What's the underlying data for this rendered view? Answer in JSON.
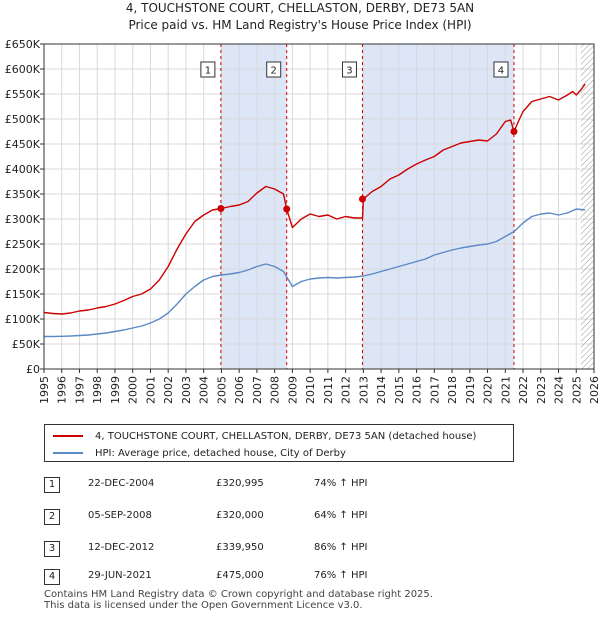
{
  "header": {
    "title_line1": "4, TOUCHSTONE COURT, CHELLASTON, DERBY, DE73 5AN",
    "title_line2": "Price paid vs. HM Land Registry's House Price Index (HPI)"
  },
  "legend": {
    "property_label": "4, TOUCHSTONE COURT, CHELLASTON, DERBY, DE73 5AN (detached house)",
    "hpi_label": "HPI: Average price, detached house, City of Derby"
  },
  "transactions": [
    {
      "num": "1",
      "date": "22-DEC-2004",
      "price": "£320,995",
      "hpi": "74% ↑ HPI"
    },
    {
      "num": "2",
      "date": "05-SEP-2008",
      "price": "£320,000",
      "hpi": "64% ↑ HPI"
    },
    {
      "num": "3",
      "date": "12-DEC-2012",
      "price": "£339,950",
      "hpi": "86% ↑ HPI"
    },
    {
      "num": "4",
      "date": "29-JUN-2021",
      "price": "£475,000",
      "hpi": "76% ↑ HPI"
    }
  ],
  "footer": {
    "line1": "Contains HM Land Registry data © Crown copyright and database right 2025.",
    "line2": "This data is licensed under the Open Government Licence v3.0."
  },
  "colors": {
    "property": "#cc0000",
    "hpi": "#5b8ac6",
    "band": "#dde6f7",
    "grid": "#d9d9d9",
    "hatch": "#999999"
  },
  "chart_data": {
    "type": "line",
    "title": "4, TOUCHSTONE COURT, CHELLASTON, DERBY, DE73 5AN",
    "subtitle": "Price paid vs. HM Land Registry's House Price Index (HPI)",
    "xlabel": "",
    "ylabel": "",
    "xlim": [
      1995,
      2026
    ],
    "ylim": [
      0,
      650000
    ],
    "grid": true,
    "y_ticks": [
      {
        "value": 0,
        "label": "£0"
      },
      {
        "value": 50000,
        "label": "£50K"
      },
      {
        "value": 100000,
        "label": "£100K"
      },
      {
        "value": 150000,
        "label": "£150K"
      },
      {
        "value": 200000,
        "label": "£200K"
      },
      {
        "value": 250000,
        "label": "£250K"
      },
      {
        "value": 300000,
        "label": "£300K"
      },
      {
        "value": 350000,
        "label": "£350K"
      },
      {
        "value": 400000,
        "label": "£400K"
      },
      {
        "value": 450000,
        "label": "£450K"
      },
      {
        "value": 500000,
        "label": "£500K"
      },
      {
        "value": 550000,
        "label": "£550K"
      },
      {
        "value": 600000,
        "label": "£600K"
      },
      {
        "value": 650000,
        "label": "£650K"
      }
    ],
    "x_ticks": [
      "1995",
      "1996",
      "1997",
      "1998",
      "1999",
      "2000",
      "2001",
      "2002",
      "2003",
      "2004",
      "2005",
      "2006",
      "2007",
      "2008",
      "2009",
      "2010",
      "2011",
      "2012",
      "2013",
      "2014",
      "2015",
      "2016",
      "2017",
      "2018",
      "2019",
      "2020",
      "2021",
      "2022",
      "2023",
      "2024",
      "2025",
      "2026"
    ],
    "shaded_ranges": [
      [
        2004.97,
        2008.68
      ],
      [
        2012.95,
        2021.49
      ]
    ],
    "hatched_from": 2025.25,
    "sale_markers": [
      {
        "label": "1",
        "x": 2004.97,
        "y": 320995
      },
      {
        "label": "2",
        "x": 2008.68,
        "y": 320000
      },
      {
        "label": "3",
        "x": 2012.95,
        "y": 339950
      },
      {
        "label": "4",
        "x": 2021.49,
        "y": 475000
      }
    ],
    "series": [
      {
        "name": "4, TOUCHSTONE COURT, CHELLASTON, DERBY, DE73 5AN (detached house)",
        "color": "#cc0000",
        "x": [
          1995,
          1995.5,
          1996,
          1996.5,
          1997,
          1997.5,
          1998,
          1998.5,
          1999,
          1999.5,
          2000,
          2000.5,
          2001,
          2001.5,
          2002,
          2002.5,
          2003,
          2003.5,
          2004,
          2004.5,
          2004.97,
          2005.5,
          2006,
          2006.5,
          2007,
          2007.5,
          2008,
          2008.5,
          2008.68,
          2009,
          2009.5,
          2010,
          2010.5,
          2011,
          2011.5,
          2012,
          2012.5,
          2012.95,
          2013,
          2013.5,
          2014,
          2014.5,
          2015,
          2015.5,
          2016,
          2016.5,
          2017,
          2017.5,
          2018,
          2018.5,
          2019,
          2019.5,
          2020,
          2020.5,
          2021,
          2021.3,
          2021.49,
          2021.8,
          2022,
          2022.5,
          2023,
          2023.5,
          2024,
          2024.5,
          2024.8,
          2025,
          2025.3,
          2025.5
        ],
        "y": [
          113000,
          111000,
          110000,
          112000,
          116000,
          118000,
          122000,
          125000,
          130000,
          137000,
          145000,
          150000,
          160000,
          178000,
          205000,
          240000,
          270000,
          295000,
          308000,
          318000,
          320995,
          325000,
          328000,
          335000,
          352000,
          365000,
          360000,
          350000,
          320000,
          283000,
          300000,
          310000,
          305000,
          308000,
          300000,
          305000,
          302000,
          302000,
          339950,
          355000,
          365000,
          380000,
          388000,
          400000,
          410000,
          418000,
          425000,
          438000,
          445000,
          452000,
          455000,
          458000,
          456000,
          470000,
          495000,
          498000,
          475000,
          500000,
          515000,
          535000,
          540000,
          545000,
          538000,
          548000,
          555000,
          548000,
          560000,
          570000
        ]
      },
      {
        "name": "HPI: Average price, detached house, City of Derby",
        "color": "#5b8ac6",
        "x": [
          1995,
          1995.5,
          1996,
          1996.5,
          1997,
          1997.5,
          1998,
          1998.5,
          1999,
          1999.5,
          2000,
          2000.5,
          2001,
          2001.5,
          2002,
          2002.5,
          2003,
          2003.5,
          2004,
          2004.5,
          2005,
          2005.5,
          2006,
          2006.5,
          2007,
          2007.5,
          2008,
          2008.5,
          2009,
          2009.5,
          2010,
          2010.5,
          2011,
          2011.5,
          2012,
          2012.5,
          2013,
          2013.5,
          2014,
          2014.5,
          2015,
          2015.5,
          2016,
          2016.5,
          2017,
          2017.5,
          2018,
          2018.5,
          2019,
          2019.5,
          2020,
          2020.5,
          2021,
          2021.5,
          2022,
          2022.5,
          2023,
          2023.5,
          2024,
          2024.5,
          2025,
          2025.5
        ],
        "y": [
          65000,
          65000,
          65500,
          66000,
          67000,
          68000,
          70000,
          72000,
          75000,
          78000,
          82000,
          86000,
          92000,
          100000,
          112000,
          130000,
          150000,
          165000,
          178000,
          185000,
          188000,
          190000,
          193000,
          198000,
          205000,
          210000,
          205000,
          195000,
          165000,
          175000,
          180000,
          182000,
          183000,
          182000,
          183000,
          184000,
          186000,
          190000,
          195000,
          200000,
          205000,
          210000,
          215000,
          220000,
          228000,
          233000,
          238000,
          242000,
          245000,
          248000,
          250000,
          255000,
          265000,
          275000,
          292000,
          305000,
          310000,
          312000,
          308000,
          312000,
          320000,
          318000
        ]
      }
    ]
  }
}
